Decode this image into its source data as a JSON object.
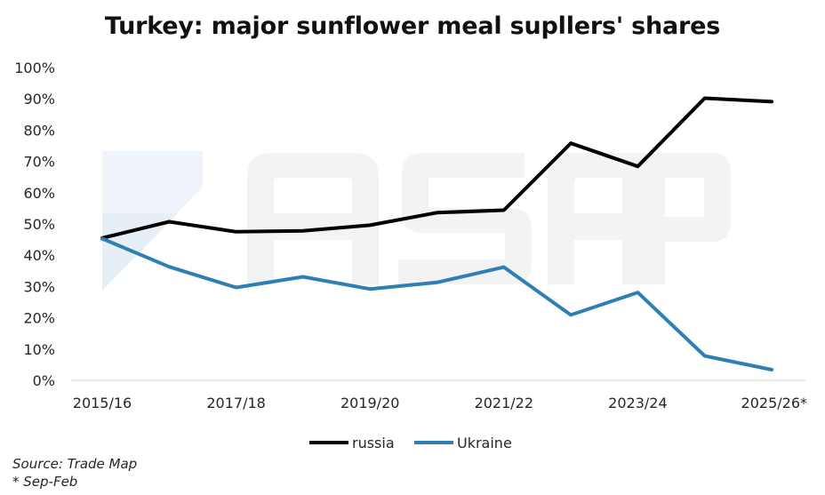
{
  "chart_data": {
    "type": "line",
    "title": "Turkey: major sunflower meal supllers' shares",
    "x": [
      "2015/16",
      "2016/17",
      "2017/18",
      "2018/19",
      "2019/20",
      "2020/21",
      "2021/22",
      "2022/23",
      "2023/24",
      "2024/25",
      "2025/26*"
    ],
    "x_tick_labels": [
      "2015/16",
      "2017/18",
      "2019/20",
      "2021/22",
      "2023/24",
      "2025/26*"
    ],
    "y_tick_labels": [
      "0%",
      "10%",
      "20%",
      "30%",
      "40%",
      "50%",
      "60%",
      "70%",
      "80%",
      "90%",
      "100%"
    ],
    "ylim": [
      0,
      100
    ],
    "y_unit": "%",
    "series": [
      {
        "name": "russia",
        "color": "#000000",
        "values": [
          45.5,
          50.7,
          47.5,
          47.8,
          49.6,
          53.6,
          54.4,
          75.8,
          68.4,
          90.2,
          89.1
        ]
      },
      {
        "name": "Ukraine",
        "color": "#2e7fb3",
        "values": [
          45.3,
          36.3,
          29.7,
          33.1,
          29.2,
          31.3,
          36.2,
          20.9,
          28.1,
          7.8,
          3.4
        ]
      }
    ],
    "legend_position": "bottom-center",
    "grid": false,
    "watermark": "ASAP"
  },
  "notes": {
    "source": "Source: Trade Map",
    "footnote": "* Sep-Feb"
  }
}
